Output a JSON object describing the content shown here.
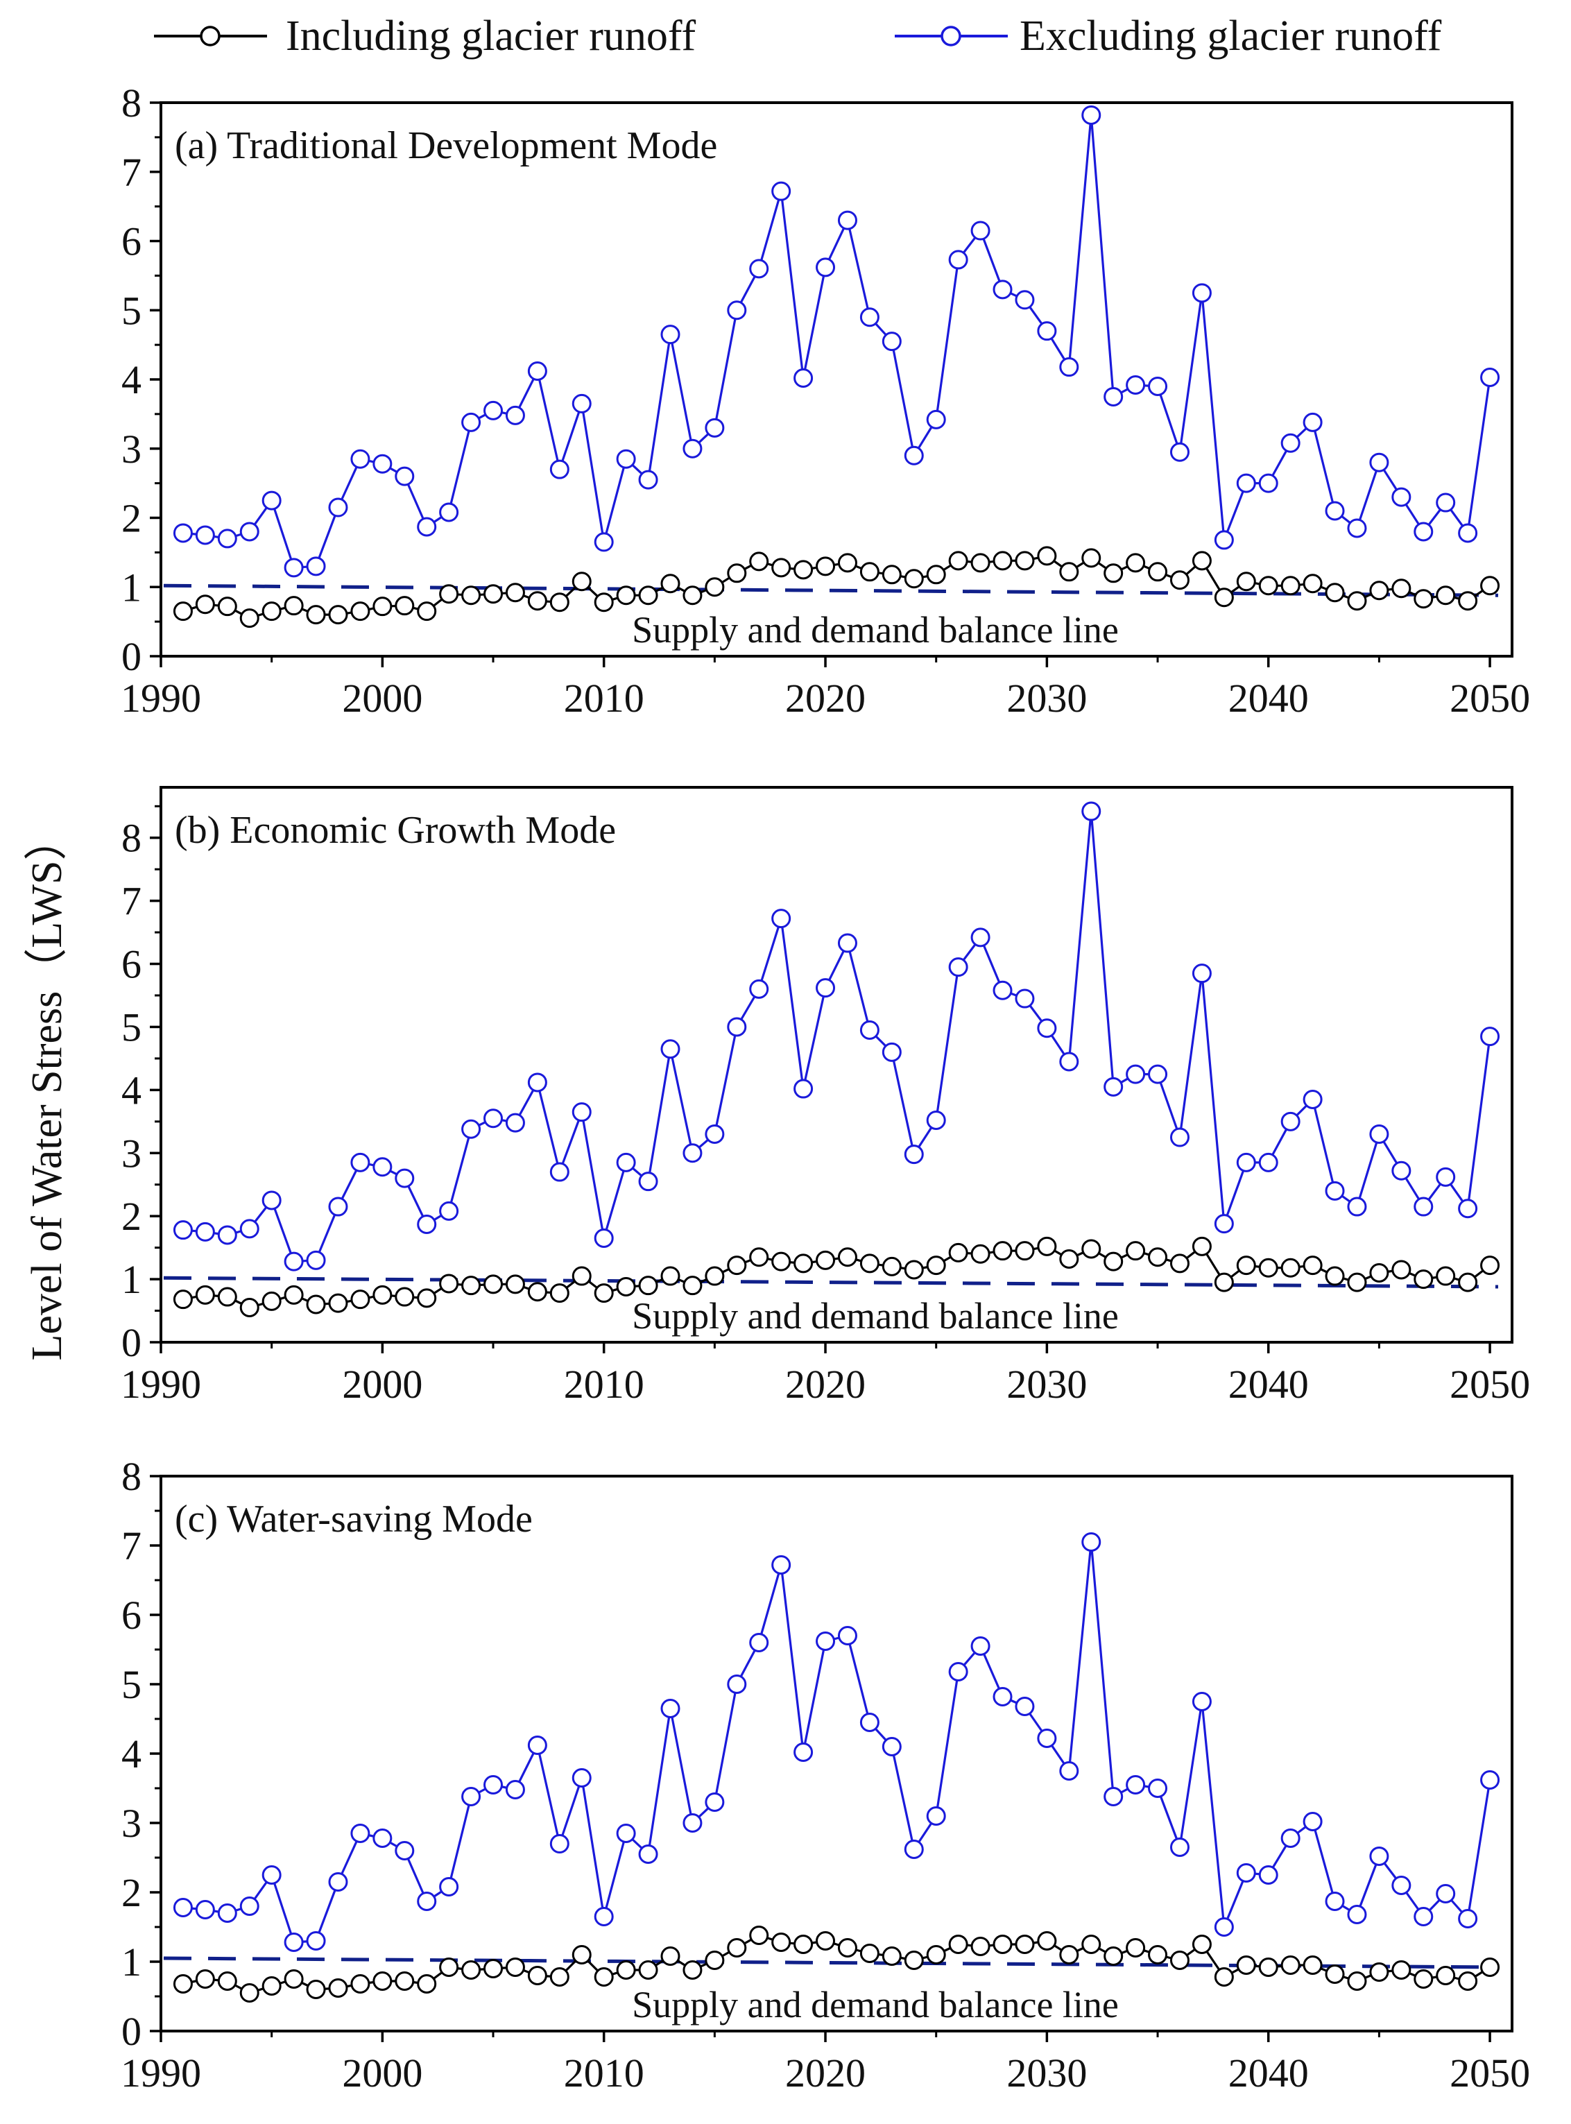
{
  "legend": [
    {
      "label": "Including glacier runoff",
      "color": "#000000"
    },
    {
      "label": "Excluding glacier runoff",
      "color": "#1a1adb"
    }
  ],
  "y_axis_label": "Level of Water Stress（LWS）",
  "balance_line_label": "Supply and demand balance line",
  "balance_line_color": "#10208a",
  "chart_data": [
    {
      "type": "line",
      "title": "(a) Traditional Development Mode",
      "x": [
        1991,
        1992,
        1993,
        1994,
        1995,
        1996,
        1997,
        1998,
        1999,
        2000,
        2001,
        2002,
        2003,
        2004,
        2005,
        2006,
        2007,
        2008,
        2009,
        2010,
        2011,
        2012,
        2013,
        2014,
        2015,
        2016,
        2017,
        2018,
        2019,
        2020,
        2021,
        2022,
        2023,
        2024,
        2025,
        2026,
        2027,
        2028,
        2029,
        2030,
        2031,
        2032,
        2033,
        2034,
        2035,
        2036,
        2037,
        2038,
        2039,
        2040,
        2041,
        2042,
        2043,
        2044,
        2045,
        2046,
        2047,
        2048,
        2049,
        2050
      ],
      "series": [
        {
          "name": "Excluding glacier runoff",
          "color": "#1a1adb",
          "values": [
            1.78,
            1.75,
            1.7,
            1.8,
            2.25,
            1.28,
            1.3,
            2.15,
            2.85,
            2.78,
            2.6,
            1.87,
            2.08,
            3.38,
            3.55,
            3.48,
            4.12,
            2.7,
            3.65,
            1.65,
            2.85,
            2.55,
            4.65,
            3.0,
            3.3,
            5.0,
            5.6,
            6.72,
            4.02,
            5.62,
            6.3,
            4.9,
            4.55,
            2.9,
            3.42,
            5.73,
            6.15,
            5.3,
            5.15,
            4.7,
            4.18,
            7.82,
            3.75,
            3.92,
            3.9,
            2.95,
            5.25,
            1.68,
            2.5,
            2.5,
            3.08,
            3.38,
            2.1,
            1.85,
            2.8,
            2.3,
            1.8,
            2.22,
            1.78,
            4.03
          ]
        },
        {
          "name": "Including glacier runoff",
          "color": "#000000",
          "values": [
            0.65,
            0.75,
            0.72,
            0.55,
            0.65,
            0.73,
            0.6,
            0.6,
            0.65,
            0.72,
            0.73,
            0.65,
            0.9,
            0.88,
            0.9,
            0.92,
            0.8,
            0.78,
            1.08,
            0.78,
            0.88,
            0.88,
            1.05,
            0.88,
            1.0,
            1.2,
            1.37,
            1.28,
            1.25,
            1.3,
            1.35,
            1.22,
            1.18,
            1.12,
            1.18,
            1.38,
            1.35,
            1.38,
            1.38,
            1.45,
            1.22,
            1.42,
            1.2,
            1.35,
            1.22,
            1.1,
            1.38,
            0.85,
            1.08,
            1.02,
            1.02,
            1.05,
            0.92,
            0.8,
            0.95,
            0.98,
            0.83,
            0.88,
            0.8,
            1.02
          ]
        }
      ],
      "balance_line": {
        "start": 1.02,
        "end": 0.88
      },
      "xlim": [
        1990,
        2051
      ],
      "ylim": [
        0,
        8
      ],
      "x_ticks": [
        1990,
        2000,
        2010,
        2020,
        2030,
        2040,
        2050
      ],
      "y_ticks": [
        0,
        1,
        2,
        3,
        4,
        5,
        6,
        7,
        8
      ]
    },
    {
      "type": "line",
      "title": "(b)  Economic Growth Mode",
      "x": [
        1991,
        1992,
        1993,
        1994,
        1995,
        1996,
        1997,
        1998,
        1999,
        2000,
        2001,
        2002,
        2003,
        2004,
        2005,
        2006,
        2007,
        2008,
        2009,
        2010,
        2011,
        2012,
        2013,
        2014,
        2015,
        2016,
        2017,
        2018,
        2019,
        2020,
        2021,
        2022,
        2023,
        2024,
        2025,
        2026,
        2027,
        2028,
        2029,
        2030,
        2031,
        2032,
        2033,
        2034,
        2035,
        2036,
        2037,
        2038,
        2039,
        2040,
        2041,
        2042,
        2043,
        2044,
        2045,
        2046,
        2047,
        2048,
        2049,
        2050
      ],
      "series": [
        {
          "name": "Excluding glacier runoff",
          "color": "#1a1adb",
          "values": [
            1.78,
            1.75,
            1.7,
            1.8,
            2.25,
            1.28,
            1.3,
            2.15,
            2.85,
            2.78,
            2.6,
            1.87,
            2.08,
            3.38,
            3.55,
            3.48,
            4.12,
            2.7,
            3.65,
            1.65,
            2.85,
            2.55,
            4.65,
            3.0,
            3.3,
            5.0,
            5.6,
            6.72,
            4.02,
            5.62,
            6.33,
            4.95,
            4.6,
            2.98,
            3.52,
            5.95,
            6.42,
            5.58,
            5.45,
            4.98,
            4.45,
            8.42,
            4.05,
            4.25,
            4.25,
            3.25,
            5.85,
            1.88,
            2.85,
            2.85,
            3.5,
            3.85,
            2.4,
            2.15,
            3.3,
            2.72,
            2.15,
            2.62,
            2.12,
            4.85
          ]
        },
        {
          "name": "Including glacier runoff",
          "color": "#000000",
          "values": [
            0.68,
            0.75,
            0.72,
            0.55,
            0.65,
            0.75,
            0.6,
            0.62,
            0.68,
            0.75,
            0.72,
            0.7,
            0.93,
            0.9,
            0.92,
            0.92,
            0.8,
            0.78,
            1.05,
            0.78,
            0.88,
            0.9,
            1.05,
            0.9,
            1.05,
            1.22,
            1.35,
            1.28,
            1.25,
            1.3,
            1.35,
            1.25,
            1.2,
            1.15,
            1.22,
            1.42,
            1.4,
            1.45,
            1.45,
            1.52,
            1.32,
            1.48,
            1.28,
            1.45,
            1.35,
            1.25,
            1.52,
            0.95,
            1.22,
            1.18,
            1.18,
            1.22,
            1.05,
            0.95,
            1.1,
            1.15,
            1.0,
            1.05,
            0.95,
            1.22
          ]
        }
      ],
      "balance_line": {
        "start": 1.02,
        "end": 0.88
      },
      "xlim": [
        1990,
        2051
      ],
      "ylim": [
        0,
        8.8
      ],
      "x_ticks": [
        1990,
        2000,
        2010,
        2020,
        2030,
        2040,
        2050
      ],
      "y_ticks": [
        0,
        1,
        2,
        3,
        4,
        5,
        6,
        7,
        8
      ]
    },
    {
      "type": "line",
      "title": "(c) Water-saving Mode",
      "x": [
        1991,
        1992,
        1993,
        1994,
        1995,
        1996,
        1997,
        1998,
        1999,
        2000,
        2001,
        2002,
        2003,
        2004,
        2005,
        2006,
        2007,
        2008,
        2009,
        2010,
        2011,
        2012,
        2013,
        2014,
        2015,
        2016,
        2017,
        2018,
        2019,
        2020,
        2021,
        2022,
        2023,
        2024,
        2025,
        2026,
        2027,
        2028,
        2029,
        2030,
        2031,
        2032,
        2033,
        2034,
        2035,
        2036,
        2037,
        2038,
        2039,
        2040,
        2041,
        2042,
        2043,
        2044,
        2045,
        2046,
        2047,
        2048,
        2049,
        2050
      ],
      "series": [
        {
          "name": "Excluding glacier runoff",
          "color": "#1a1adb",
          "values": [
            1.78,
            1.75,
            1.7,
            1.8,
            2.25,
            1.28,
            1.3,
            2.15,
            2.85,
            2.78,
            2.6,
            1.87,
            2.08,
            3.38,
            3.55,
            3.48,
            4.12,
            2.7,
            3.65,
            1.65,
            2.85,
            2.55,
            4.65,
            3.0,
            3.3,
            5.0,
            5.6,
            6.72,
            4.02,
            5.62,
            5.7,
            4.45,
            4.1,
            2.62,
            3.1,
            5.18,
            5.55,
            4.82,
            4.68,
            4.22,
            3.75,
            7.05,
            3.38,
            3.55,
            3.5,
            2.65,
            4.75,
            1.5,
            2.28,
            2.25,
            2.78,
            3.02,
            1.87,
            1.68,
            2.52,
            2.1,
            1.65,
            1.98,
            1.62,
            3.62
          ]
        },
        {
          "name": "Including glacier runoff",
          "color": "#000000",
          "values": [
            0.68,
            0.75,
            0.72,
            0.55,
            0.65,
            0.75,
            0.6,
            0.62,
            0.68,
            0.72,
            0.72,
            0.68,
            0.92,
            0.88,
            0.9,
            0.92,
            0.8,
            0.78,
            1.1,
            0.78,
            0.88,
            0.88,
            1.08,
            0.88,
            1.02,
            1.2,
            1.38,
            1.28,
            1.25,
            1.3,
            1.2,
            1.12,
            1.08,
            1.02,
            1.1,
            1.25,
            1.22,
            1.25,
            1.25,
            1.3,
            1.1,
            1.25,
            1.08,
            1.2,
            1.1,
            1.02,
            1.25,
            0.78,
            0.95,
            0.92,
            0.95,
            0.95,
            0.82,
            0.72,
            0.85,
            0.88,
            0.75,
            0.8,
            0.72,
            0.92
          ]
        }
      ],
      "balance_line": {
        "start": 1.05,
        "end": 0.92
      },
      "xlim": [
        1990,
        2051
      ],
      "ylim": [
        0,
        8
      ],
      "x_ticks": [
        1990,
        2000,
        2010,
        2020,
        2030,
        2040,
        2050
      ],
      "y_ticks": [
        0,
        1,
        2,
        3,
        4,
        5,
        6,
        7,
        8
      ]
    }
  ]
}
